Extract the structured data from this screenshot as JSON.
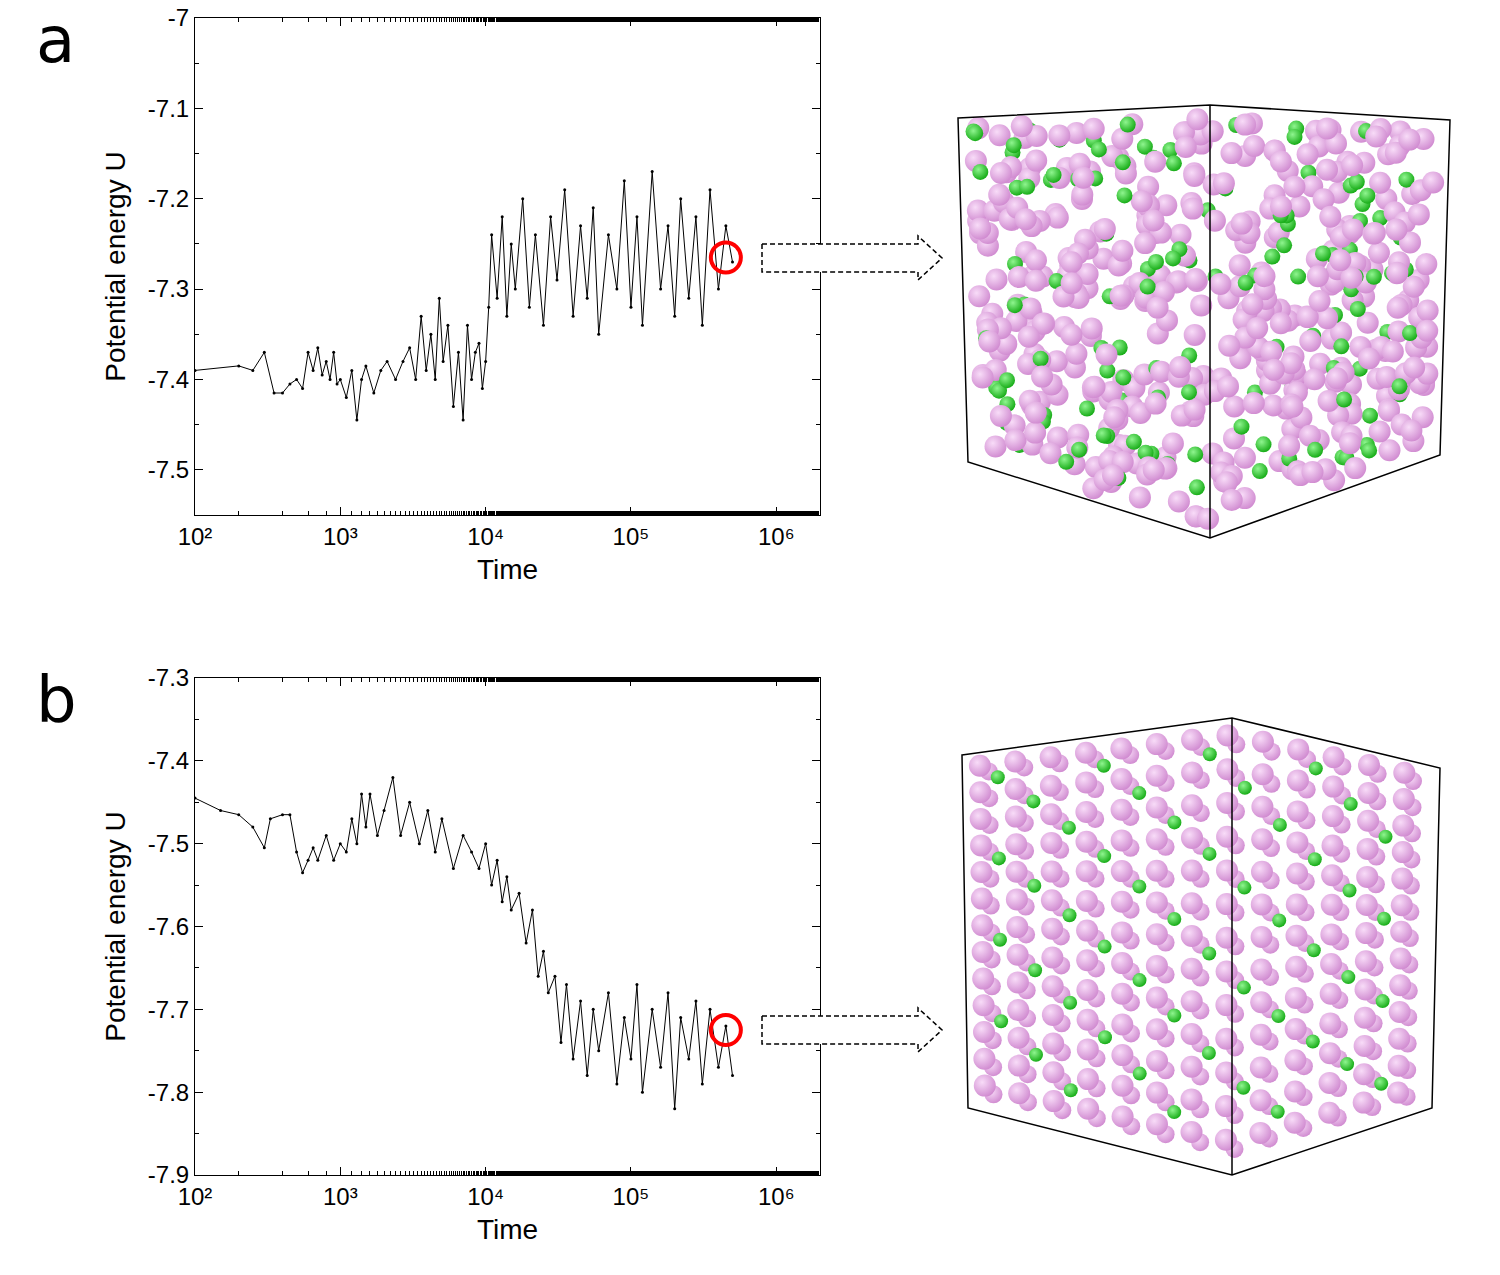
{
  "chart_data": [
    {
      "type": "line",
      "panel": "a",
      "color": "#000000",
      "marker": "circle",
      "line_style": "solid",
      "xlabel": "Time",
      "ylabel": "Potential energy U",
      "log": "x",
      "grid": false,
      "xlim": [
        100,
        2000000
      ],
      "xticks": [
        {
          "value": 100,
          "label": "10²"
        },
        {
          "value": 1000,
          "label": "10³"
        },
        {
          "value": 10000,
          "label": "10⁴"
        },
        {
          "value": 100000,
          "label": "10⁵"
        },
        {
          "value": 1000000,
          "label": "10⁶"
        }
      ],
      "ylim": [
        -7.55,
        -7.0
      ],
      "yticks": [
        -7.5,
        -7.4,
        -7.3,
        -7.2,
        -7.1,
        -7
      ],
      "x": [
        100,
        200,
        250,
        300,
        350,
        400,
        450,
        500,
        550,
        600,
        650,
        700,
        750,
        800,
        850,
        900,
        950,
        1000,
        1100,
        1200,
        1300,
        1400,
        1500,
        1700,
        1900,
        2100,
        2400,
        2700,
        3000,
        3300,
        3600,
        3900,
        4200,
        4500,
        4800,
        5100,
        5500,
        6000,
        6500,
        7000,
        7500,
        8000,
        8500,
        9000,
        9500,
        10000,
        10500,
        11000,
        12000,
        13000,
        14000,
        15000,
        16000,
        18000,
        20000,
        22000,
        25000,
        28000,
        31000,
        35000,
        40000,
        45000,
        50000,
        55000,
        60000,
        70000,
        80000,
        90000,
        100000,
        110000,
        120000,
        140000,
        160000,
        180000,
        200000,
        220000,
        250000,
        280000,
        310000,
        350000,
        400000,
        450000,
        500000
      ],
      "values": [
        -7.39,
        -7.385,
        -7.39,
        -7.37,
        -7.415,
        -7.415,
        -7.405,
        -7.4,
        -7.41,
        -7.37,
        -7.39,
        -7.365,
        -7.395,
        -7.38,
        -7.4,
        -7.37,
        -7.405,
        -7.4,
        -7.42,
        -7.39,
        -7.445,
        -7.4,
        -7.385,
        -7.415,
        -7.39,
        -7.38,
        -7.4,
        -7.38,
        -7.365,
        -7.4,
        -7.33,
        -7.39,
        -7.35,
        -7.4,
        -7.31,
        -7.38,
        -7.34,
        -7.43,
        -7.37,
        -7.445,
        -7.34,
        -7.4,
        -7.37,
        -7.36,
        -7.41,
        -7.38,
        -7.32,
        -7.24,
        -7.31,
        -7.22,
        -7.33,
        -7.25,
        -7.3,
        -7.2,
        -7.32,
        -7.24,
        -7.34,
        -7.22,
        -7.29,
        -7.19,
        -7.33,
        -7.23,
        -7.31,
        -7.21,
        -7.35,
        -7.24,
        -7.3,
        -7.18,
        -7.32,
        -7.22,
        -7.34,
        -7.17,
        -7.3,
        -7.23,
        -7.33,
        -7.2,
        -7.31,
        -7.22,
        -7.34,
        -7.19,
        -7.3,
        -7.23,
        -7.27
      ],
      "marked_point": {
        "x": 450000,
        "y": -7.265
      }
    },
    {
      "type": "line",
      "panel": "b",
      "color": "#000000",
      "marker": "circle",
      "line_style": "solid",
      "xlabel": "Time",
      "ylabel": "Potential energy U",
      "log": "x",
      "grid": false,
      "xlim": [
        100,
        2000000
      ],
      "xticks": [
        {
          "value": 100,
          "label": "10²"
        },
        {
          "value": 1000,
          "label": "10³"
        },
        {
          "value": 10000,
          "label": "10⁴"
        },
        {
          "value": 100000,
          "label": "10⁵"
        },
        {
          "value": 1000000,
          "label": "10⁶"
        }
      ],
      "ylim": [
        -7.9,
        -7.3
      ],
      "yticks": [
        -7.9,
        -7.8,
        -7.7,
        -7.6,
        -7.5,
        -7.4,
        -7.3
      ],
      "x": [
        100,
        150,
        200,
        250,
        300,
        330,
        400,
        450,
        500,
        550,
        600,
        650,
        700,
        800,
        900,
        1000,
        1100,
        1200,
        1300,
        1400,
        1500,
        1600,
        1800,
        2000,
        2300,
        2600,
        3000,
        3500,
        4000,
        4500,
        5000,
        6000,
        7000,
        8000,
        9000,
        10000,
        11000,
        12000,
        13000,
        14000,
        15000,
        17000,
        19000,
        21000,
        23000,
        25000,
        27000,
        30000,
        33000,
        36000,
        40000,
        45000,
        50000,
        55000,
        60000,
        70000,
        80000,
        90000,
        100000,
        110000,
        120000,
        140000,
        160000,
        180000,
        200000,
        220000,
        250000,
        280000,
        310000,
        350000,
        400000,
        450000,
        500000
      ],
      "values": [
        -7.445,
        -7.46,
        -7.465,
        -7.48,
        -7.505,
        -7.47,
        -7.465,
        -7.465,
        -7.51,
        -7.535,
        -7.52,
        -7.505,
        -7.52,
        -7.49,
        -7.52,
        -7.5,
        -7.51,
        -7.47,
        -7.5,
        -7.44,
        -7.48,
        -7.44,
        -7.49,
        -7.46,
        -7.42,
        -7.49,
        -7.45,
        -7.5,
        -7.46,
        -7.51,
        -7.47,
        -7.53,
        -7.49,
        -7.51,
        -7.53,
        -7.5,
        -7.55,
        -7.52,
        -7.57,
        -7.54,
        -7.58,
        -7.56,
        -7.62,
        -7.58,
        -7.66,
        -7.63,
        -7.68,
        -7.66,
        -7.74,
        -7.67,
        -7.76,
        -7.69,
        -7.78,
        -7.7,
        -7.75,
        -7.68,
        -7.79,
        -7.71,
        -7.76,
        -7.67,
        -7.8,
        -7.7,
        -7.77,
        -7.68,
        -7.82,
        -7.71,
        -7.76,
        -7.69,
        -7.79,
        -7.7,
        -7.77,
        -7.72,
        -7.78
      ],
      "marked_point": {
        "x": 450000,
        "y": -7.725
      }
    }
  ]
}
